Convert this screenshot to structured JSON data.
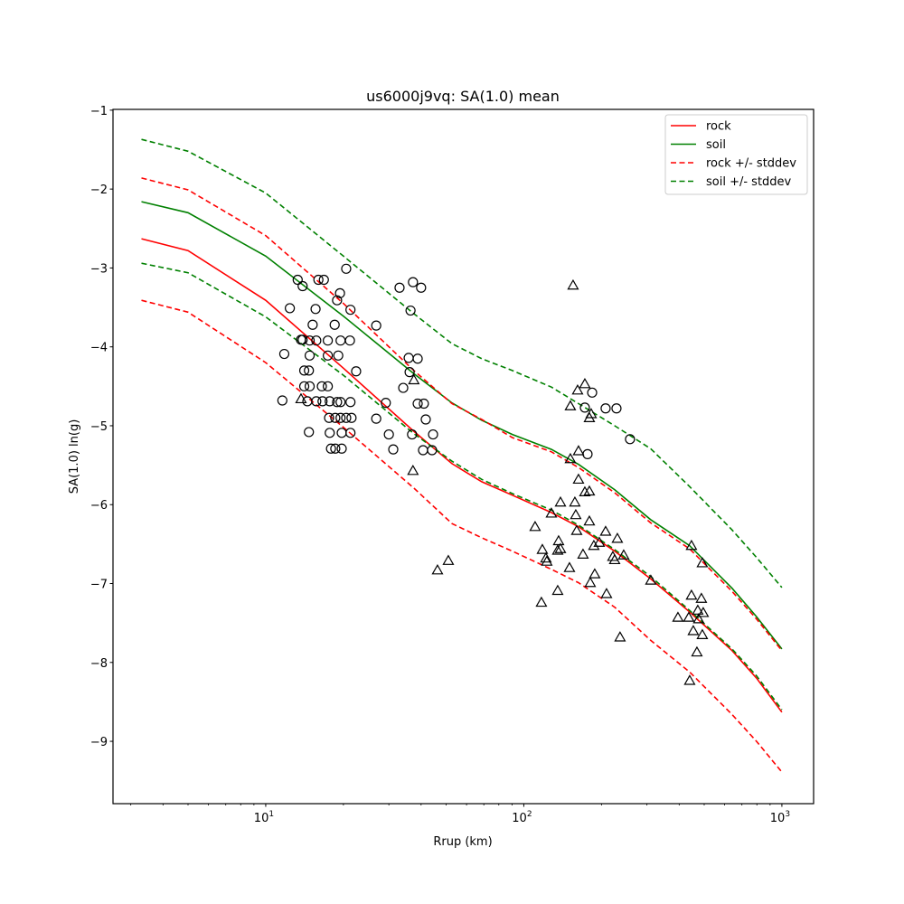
{
  "chart_data": {
    "type": "line",
    "title": "us6000j9vq: SA(1.0) mean",
    "xlabel": "Rrup (km)",
    "ylabel": "SA(1.0) ln(g)",
    "xscale": "log",
    "xlim": [
      2.56,
      1327
    ],
    "ylim": [
      -9.79,
      -0.99
    ],
    "grid": false,
    "legend_position": "top-right",
    "x_ticks": [
      {
        "value": 10,
        "base": "10",
        "exp": "1"
      },
      {
        "value": 100,
        "base": "10",
        "exp": "2"
      },
      {
        "value": 1000,
        "base": "10",
        "exp": "3"
      }
    ],
    "y_ticks": [
      {
        "value": -1,
        "label": "−1"
      },
      {
        "value": -2,
        "label": "−2"
      },
      {
        "value": -3,
        "label": "−3"
      },
      {
        "value": -4,
        "label": "−4"
      },
      {
        "value": -5,
        "label": "−5"
      },
      {
        "value": -6,
        "label": "−6"
      },
      {
        "value": -7,
        "label": "−7"
      },
      {
        "value": -8,
        "label": "−8"
      },
      {
        "value": -9,
        "label": "−9"
      }
    ],
    "x": [
      3.3,
      5,
      10,
      20,
      37.5,
      52.7,
      68.7,
      90.3,
      128,
      163,
      225,
      310,
      439,
      641,
      798,
      1000
    ],
    "series": [
      {
        "name": "rock",
        "color": "#ff0000",
        "dash": false,
        "legend": true,
        "values": [
          -2.63,
          -2.78,
          -3.41,
          -4.27,
          -5.07,
          -5.48,
          -5.71,
          -5.88,
          -6.1,
          -6.28,
          -6.59,
          -6.94,
          -7.36,
          -7.85,
          -8.2,
          -8.63
        ]
      },
      {
        "name": "soil",
        "color": "#008000",
        "dash": false,
        "legend": true,
        "values": [
          -2.16,
          -2.3,
          -2.85,
          -3.61,
          -4.34,
          -4.71,
          -4.93,
          -5.11,
          -5.3,
          -5.49,
          -5.81,
          -6.19,
          -6.52,
          -7.06,
          -7.42,
          -7.83
        ]
      },
      {
        "name": "rock +/- stddev",
        "color": "#ff0000",
        "dash": true,
        "legend": true,
        "values": [
          -1.86,
          -2.01,
          -2.59,
          -3.45,
          -4.3,
          -4.72,
          -4.92,
          -5.15,
          -5.33,
          -5.53,
          -5.85,
          -6.23,
          -6.56,
          -7.1,
          -7.45,
          -7.85
        ]
      },
      {
        "name": "rock +/- stddev",
        "color": "#ff0000",
        "dash": true,
        "legend": false,
        "values": [
          -3.41,
          -3.56,
          -4.2,
          -5.02,
          -5.79,
          -6.24,
          -6.42,
          -6.59,
          -6.82,
          -6.99,
          -7.3,
          -7.72,
          -8.12,
          -8.66,
          -9.0,
          -9.39
        ]
      },
      {
        "name": "soil +/- stddev",
        "color": "#008000",
        "dash": true,
        "legend": true,
        "values": [
          -1.37,
          -1.52,
          -2.05,
          -2.85,
          -3.58,
          -3.96,
          -4.15,
          -4.3,
          -4.51,
          -4.72,
          -5.0,
          -5.29,
          -5.77,
          -6.32,
          -6.67,
          -7.05
        ]
      },
      {
        "name": "soil +/- stddev",
        "color": "#008000",
        "dash": true,
        "legend": false,
        "values": [
          -2.94,
          -3.06,
          -3.62,
          -4.36,
          -5.1,
          -5.45,
          -5.68,
          -5.86,
          -6.07,
          -6.26,
          -6.57,
          -6.91,
          -7.34,
          -7.83,
          -8.17,
          -8.6
        ]
      }
    ],
    "scatter": [
      {
        "marker": "circle",
        "points": [
          [
            20.5,
            -3.01
          ],
          [
            13.3,
            -3.15
          ],
          [
            13.9,
            -3.23
          ],
          [
            16.0,
            -3.15
          ],
          [
            16.8,
            -3.15
          ],
          [
            19.4,
            -3.32
          ],
          [
            18.9,
            -3.41
          ],
          [
            12.4,
            -3.51
          ],
          [
            15.6,
            -3.52
          ],
          [
            21.3,
            -3.53
          ],
          [
            15.2,
            -3.72
          ],
          [
            18.5,
            -3.72
          ],
          [
            26.8,
            -3.73
          ],
          [
            13.7,
            -3.91
          ],
          [
            13.9,
            -3.91
          ],
          [
            14.8,
            -3.92
          ],
          [
            15.7,
            -3.92
          ],
          [
            17.4,
            -3.92
          ],
          [
            19.5,
            -3.92
          ],
          [
            21.2,
            -3.92
          ],
          [
            11.8,
            -4.09
          ],
          [
            14.8,
            -4.11
          ],
          [
            17.4,
            -4.11
          ],
          [
            19.1,
            -4.11
          ],
          [
            14.1,
            -4.3
          ],
          [
            14.7,
            -4.3
          ],
          [
            22.4,
            -4.31
          ],
          [
            14.1,
            -4.5
          ],
          [
            14.8,
            -4.5
          ],
          [
            16.5,
            -4.5
          ],
          [
            17.4,
            -4.5
          ],
          [
            11.6,
            -4.68
          ],
          [
            14.5,
            -4.69
          ],
          [
            15.7,
            -4.69
          ],
          [
            16.6,
            -4.69
          ],
          [
            17.7,
            -4.69
          ],
          [
            18.9,
            -4.7
          ],
          [
            19.5,
            -4.7
          ],
          [
            21.3,
            -4.7
          ],
          [
            29.2,
            -4.71
          ],
          [
            17.6,
            -4.9
          ],
          [
            18.6,
            -4.9
          ],
          [
            19.5,
            -4.9
          ],
          [
            20.5,
            -4.9
          ],
          [
            21.5,
            -4.9
          ],
          [
            26.8,
            -4.91
          ],
          [
            14.7,
            -5.08
          ],
          [
            17.7,
            -5.09
          ],
          [
            19.7,
            -5.09
          ],
          [
            21.3,
            -5.09
          ],
          [
            30.0,
            -5.11
          ],
          [
            17.9,
            -5.29
          ],
          [
            18.6,
            -5.29
          ],
          [
            19.7,
            -5.29
          ],
          [
            31.2,
            -5.3
          ],
          [
            33.0,
            -3.25
          ],
          [
            37.2,
            -3.18
          ],
          [
            40.0,
            -3.25
          ],
          [
            36.4,
            -3.54
          ],
          [
            35.8,
            -4.14
          ],
          [
            38.8,
            -4.15
          ],
          [
            36.1,
            -4.32
          ],
          [
            34.1,
            -4.52
          ],
          [
            38.8,
            -4.72
          ],
          [
            41.0,
            -4.72
          ],
          [
            41.7,
            -4.92
          ],
          [
            36.9,
            -5.11
          ],
          [
            44.5,
            -5.11
          ],
          [
            40.7,
            -5.31
          ],
          [
            44.1,
            -5.31
          ],
          [
            184,
            -4.58
          ],
          [
            172.4,
            -4.77
          ],
          [
            207.5,
            -4.78
          ],
          [
            228.6,
            -4.78
          ],
          [
            257.9,
            -5.17
          ],
          [
            176.6,
            -5.36
          ]
        ]
      },
      {
        "marker": "triangle",
        "points": [
          [
            37.5,
            -4.42
          ],
          [
            13.7,
            -4.66
          ],
          [
            37.2,
            -5.57
          ],
          [
            46.3,
            -6.83
          ],
          [
            51.0,
            -6.71
          ],
          [
            155.2,
            -3.22
          ],
          [
            172.4,
            -4.47
          ],
          [
            161.6,
            -4.55
          ],
          [
            151.5,
            -4.75
          ],
          [
            182.4,
            -4.85
          ],
          [
            179.5,
            -4.9
          ],
          [
            162.9,
            -5.32
          ],
          [
            151.5,
            -5.42
          ],
          [
            162.9,
            -5.68
          ],
          [
            172.4,
            -5.84
          ],
          [
            179.5,
            -5.83
          ],
          [
            138.7,
            -5.97
          ],
          [
            157.7,
            -5.97
          ],
          [
            127.9,
            -6.11
          ],
          [
            159.0,
            -6.13
          ],
          [
            179.5,
            -6.21
          ],
          [
            110.6,
            -6.28
          ],
          [
            160.3,
            -6.33
          ],
          [
            207.5,
            -6.34
          ],
          [
            230.4,
            -6.43
          ],
          [
            136.4,
            -6.46
          ],
          [
            196.1,
            -6.48
          ],
          [
            186.8,
            -6.52
          ],
          [
            138.7,
            -6.56
          ],
          [
            135.3,
            -6.58
          ],
          [
            118.0,
            -6.57
          ],
          [
            169.6,
            -6.63
          ],
          [
            221.3,
            -6.66
          ],
          [
            243.8,
            -6.64
          ],
          [
            224.9,
            -6.7
          ],
          [
            121.8,
            -6.68
          ],
          [
            122.8,
            -6.72
          ],
          [
            150.3,
            -6.8
          ],
          [
            188.3,
            -6.88
          ],
          [
            310.5,
            -6.96
          ],
          [
            180.9,
            -6.99
          ],
          [
            135.3,
            -7.09
          ],
          [
            209.2,
            -7.13
          ],
          [
            117.0,
            -7.24
          ],
          [
            446.3,
            -6.52
          ],
          [
            446.3,
            -7.15
          ],
          [
            236.0,
            -7.68
          ],
          [
            395.6,
            -7.43
          ],
          [
            435.8,
            -7.43
          ],
          [
            453.6,
            -7.6
          ],
          [
            491.7,
            -6.74
          ],
          [
            487.7,
            -7.19
          ],
          [
            472.2,
            -7.34
          ],
          [
            495.7,
            -7.37
          ],
          [
            476.0,
            -7.45
          ],
          [
            491.7,
            -7.65
          ],
          [
            468.6,
            -7.87
          ],
          [
            439.3,
            -8.23
          ]
        ]
      }
    ]
  }
}
